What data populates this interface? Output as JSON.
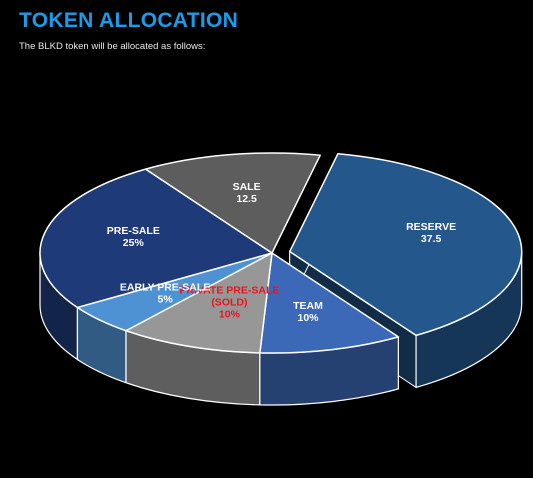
{
  "header": {
    "title": "TOKEN ALLOCATION",
    "subtitle": "The BLKD token will be allocated as follows:"
  },
  "colors": {
    "title": "#1e9be8",
    "label_default": "#ffffff",
    "label_highlight": "#e8141c",
    "background": "#000000"
  },
  "chart_data": {
    "type": "pie",
    "style": "3d-exploded",
    "unit": "%",
    "slices": [
      {
        "key": "reserve",
        "lines": [
          "RESERVE",
          "37.5"
        ],
        "value": 37.5,
        "color": "#24578c",
        "label_color": "#ffffff",
        "exploded": true
      },
      {
        "key": "team",
        "lines": [
          "TEAM",
          "10%"
        ],
        "value": 10,
        "color": "#3b69b8",
        "label_color": "#ffffff",
        "exploded": false
      },
      {
        "key": "private",
        "lines": [
          "PRIVATE PRE-SALE",
          "(SOLD)",
          "10%"
        ],
        "value": 10,
        "color": "#979797",
        "label_color": "#e8141c",
        "exploded": false
      },
      {
        "key": "early",
        "lines": [
          "EARLY PRE-SALE",
          "5%"
        ],
        "value": 5,
        "color": "#4f92d4",
        "label_color": "#ffffff",
        "exploded": false
      },
      {
        "key": "presale",
        "lines": [
          "PRE-SALE",
          "25%"
        ],
        "value": 25,
        "color": "#1f3a78",
        "label_color": "#ffffff",
        "exploded": false
      },
      {
        "key": "sale",
        "lines": [
          "SALE",
          "12.5"
        ],
        "value": 12.5,
        "color": "#5d5d5d",
        "label_color": "#ffffff",
        "exploded": false
      }
    ]
  }
}
